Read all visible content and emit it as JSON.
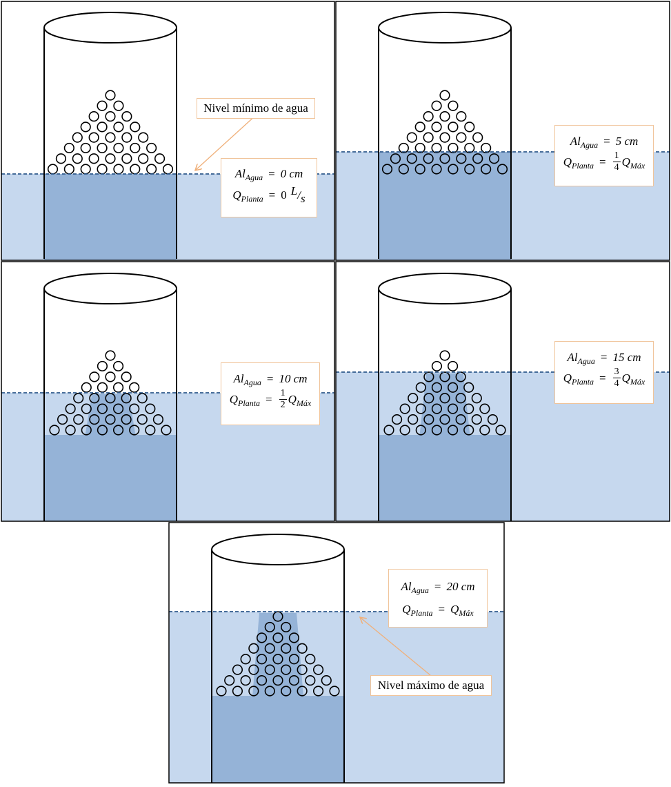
{
  "colors": {
    "water_outer": "#c6d8ee",
    "water_inner": "#95b3d7",
    "level_line": "#2f5a8c",
    "outline": "#000000",
    "label_border": "#f0c49a",
    "arrow": "#f0b07a"
  },
  "notes": {
    "min_level": "Nivel mínimo de agua",
    "max_level": "Nivel máximo de agua"
  },
  "panels": [
    {
      "id": "p0",
      "al_var": "Al",
      "al_sub": "Agua",
      "al_value": "0 cm",
      "q_var": "Q",
      "q_sub": "Planta",
      "q_value": "0",
      "q_unit_num": "L",
      "q_unit_den": "s"
    },
    {
      "id": "p5",
      "al_var": "Al",
      "al_sub": "Agua",
      "al_value": "5 cm",
      "q_var": "Q",
      "q_sub": "Planta",
      "q_frac_num": "1",
      "q_frac_den": "4",
      "q_rhs_var": "Q",
      "q_rhs_sub": "Máx"
    },
    {
      "id": "p10",
      "al_var": "Al",
      "al_sub": "Agua",
      "al_value": "10 cm",
      "q_var": "Q",
      "q_sub": "Planta",
      "q_frac_num": "1",
      "q_frac_den": "2",
      "q_rhs_var": "Q",
      "q_rhs_sub": "Máx"
    },
    {
      "id": "p15",
      "al_var": "Al",
      "al_sub": "Agua",
      "al_value": "15 cm",
      "q_var": "Q",
      "q_sub": "Planta",
      "q_frac_num": "3",
      "q_frac_den": "4",
      "q_rhs_var": "Q",
      "q_rhs_sub": "Máx"
    },
    {
      "id": "p20",
      "al_var": "Al",
      "al_sub": "Agua",
      "al_value": "20 cm",
      "q_var": "Q",
      "q_sub": "Planta",
      "q_rhs_var": "Q",
      "q_rhs_sub": "Máx"
    }
  ]
}
